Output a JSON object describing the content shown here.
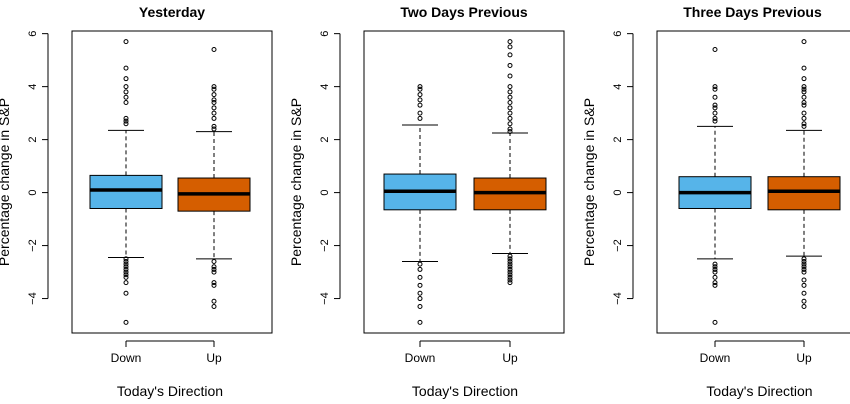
{
  "colors": {
    "down": "#56B4E9",
    "up": "#D55E00",
    "outline": "#000000"
  },
  "chart_data": [
    {
      "type": "box",
      "title": "Yesterday",
      "xlabel": "Today's Direction",
      "ylabel": "Percentage change in S&P",
      "categories": [
        "Down",
        "Up"
      ],
      "ylim": [
        -5.3,
        6.1
      ],
      "yticks": [
        -4,
        -2,
        0,
        2,
        4,
        6
      ],
      "yticklabels": [
        "−4",
        "−2",
        "0",
        "2",
        "4",
        "6"
      ],
      "boxes": [
        {
          "name": "Down",
          "whisker_low": -2.45,
          "q1": -0.6,
          "median": 0.1,
          "q3": 0.65,
          "whisker_high": 2.35,
          "outliers": [
            5.7,
            4.7,
            4.3,
            4.0,
            3.8,
            3.6,
            3.4,
            2.8,
            2.7,
            2.6,
            -2.5,
            -2.6,
            -2.7,
            -2.8,
            -2.9,
            -3.0,
            -3.1,
            -3.2,
            -3.4,
            -3.8,
            -4.9
          ]
        },
        {
          "name": "Up",
          "whisker_low": -2.5,
          "q1": -0.7,
          "median": -0.05,
          "q3": 0.55,
          "whisker_high": 2.3,
          "outliers": [
            5.4,
            4.0,
            3.9,
            3.7,
            3.5,
            3.4,
            3.2,
            3.0,
            2.8,
            2.5,
            2.4,
            -2.6,
            -2.8,
            -2.9,
            -3.0,
            -3.4,
            -3.5,
            -4.1,
            -4.3
          ]
        }
      ]
    },
    {
      "type": "box",
      "title": "Two Days Previous",
      "xlabel": "Today's Direction",
      "ylabel": "Percentage change in S&P",
      "categories": [
        "Down",
        "Up"
      ],
      "ylim": [
        -5.3,
        6.1
      ],
      "yticks": [
        -4,
        -2,
        0,
        2,
        4,
        6
      ],
      "yticklabels": [
        "−4",
        "−2",
        "0",
        "2",
        "4",
        "6"
      ],
      "boxes": [
        {
          "name": "Down",
          "whisker_low": -2.6,
          "q1": -0.65,
          "median": 0.05,
          "q3": 0.7,
          "whisker_high": 2.55,
          "outliers": [
            4.0,
            3.9,
            3.7,
            3.5,
            3.3,
            3.0,
            2.8,
            -2.7,
            -2.9,
            -3.2,
            -3.5,
            -3.8,
            -4.0,
            -4.3,
            -4.9
          ]
        },
        {
          "name": "Up",
          "whisker_low": -2.3,
          "q1": -0.65,
          "median": 0.0,
          "q3": 0.55,
          "whisker_high": 2.25,
          "outliers": [
            5.7,
            5.5,
            5.2,
            4.8,
            4.4,
            4.0,
            3.8,
            3.6,
            3.4,
            3.2,
            3.0,
            2.8,
            2.6,
            2.4,
            2.3,
            -2.4,
            -2.5,
            -2.6,
            -2.7,
            -2.8,
            -2.9,
            -3.0,
            -3.1,
            -3.2,
            -3.3,
            -3.4
          ]
        }
      ]
    },
    {
      "type": "box",
      "title": "Three Days Previous",
      "xlabel": "Today's Direction",
      "ylabel": "Percentage change in S&P",
      "categories": [
        "Down",
        "Up"
      ],
      "ylim": [
        -5.3,
        6.1
      ],
      "yticks": [
        -4,
        -2,
        0,
        2,
        4,
        6
      ],
      "yticklabels": [
        "−4",
        "−2",
        "0",
        "2",
        "4",
        "6"
      ],
      "boxes": [
        {
          "name": "Down",
          "whisker_low": -2.5,
          "q1": -0.6,
          "median": 0.0,
          "q3": 0.6,
          "whisker_high": 2.5,
          "outliers": [
            5.4,
            4.0,
            3.9,
            3.6,
            3.3,
            3.2,
            3.0,
            2.8,
            2.7,
            -2.7,
            -2.8,
            -2.9,
            -3.0,
            -3.2,
            -3.4,
            -3.5,
            -4.9
          ]
        },
        {
          "name": "Up",
          "whisker_low": -2.4,
          "q1": -0.65,
          "median": 0.05,
          "q3": 0.6,
          "whisker_high": 2.35,
          "outliers": [
            5.7,
            4.7,
            4.3,
            4.0,
            3.9,
            3.8,
            3.6,
            3.4,
            3.3,
            3.0,
            2.8,
            2.6,
            2.5,
            -2.5,
            -2.6,
            -2.7,
            -2.8,
            -2.9,
            -3.0,
            -3.3,
            -3.5,
            -3.8,
            -4.1,
            -4.3
          ]
        }
      ]
    }
  ]
}
